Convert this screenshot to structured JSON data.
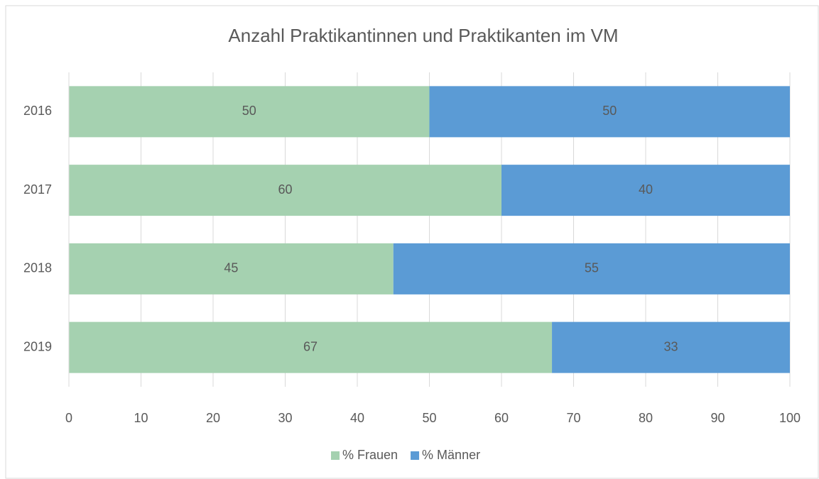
{
  "chart_data": {
    "type": "bar",
    "orientation": "horizontal",
    "stacked": true,
    "title": "Anzahl Praktikantinnen und Praktikanten im VM",
    "categories": [
      "2016",
      "2017",
      "2018",
      "2019"
    ],
    "series": [
      {
        "name": "% Frauen",
        "color": "#a5d1b0",
        "values": [
          50,
          60,
          45,
          67
        ]
      },
      {
        "name": "% Männer",
        "color": "#5b9bd5",
        "values": [
          50,
          40,
          55,
          33
        ]
      }
    ],
    "xlim": [
      0,
      100
    ],
    "xticks": [
      0,
      10,
      20,
      30,
      40,
      50,
      60,
      70,
      80,
      90,
      100
    ],
    "grid": true,
    "legend": "bottom"
  }
}
